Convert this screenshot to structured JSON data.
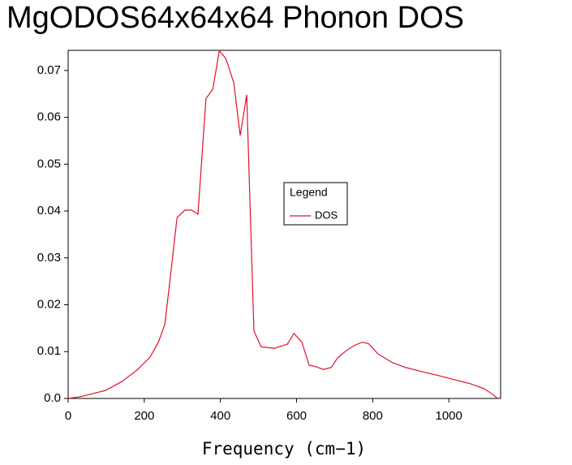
{
  "chart_data": {
    "type": "line",
    "title": "MgODOS64x64x64 Phonon DOS",
    "x_label": "Frequency (cm−1)",
    "legend_title": "Legend",
    "x": [
      0,
      34,
      98,
      141,
      183,
      215,
      237,
      254,
      269,
      286,
      307,
      324,
      341,
      362,
      380,
      397,
      414,
      435,
      452,
      469,
      488,
      507,
      542,
      576,
      593,
      614,
      633,
      650,
      670,
      691,
      708,
      729,
      751,
      772,
      789,
      814,
      853,
      887,
      930,
      972,
      1015,
      1058,
      1092,
      1115,
      1128
    ],
    "series": [
      {
        "name": "DOS",
        "color": "#e0102a",
        "values": [
          0,
          0.0004,
          0.0017,
          0.0036,
          0.0062,
          0.0088,
          0.012,
          0.0158,
          0.0263,
          0.0386,
          0.0402,
          0.0402,
          0.0393,
          0.064,
          0.066,
          0.0742,
          0.0726,
          0.0674,
          0.0561,
          0.0648,
          0.0144,
          0.011,
          0.0107,
          0.0116,
          0.0139,
          0.012,
          0.0071,
          0.0068,
          0.0062,
          0.0066,
          0.0087,
          0.0101,
          0.0113,
          0.012,
          0.0117,
          0.0095,
          0.0076,
          0.0066,
          0.0057,
          0.0049,
          0.004,
          0.0031,
          0.0021,
          0.0009,
          0
        ]
      }
    ],
    "xlim": [
      0,
      1136
    ],
    "xticks": [
      0,
      200,
      400,
      600,
      800,
      1000
    ],
    "ylim": [
      0,
      0.0743
    ],
    "yticks": [
      {
        "value": 0,
        "label": "0.0"
      },
      0.01,
      0.02,
      0.03,
      0.04,
      0.05,
      0.06,
      0.07
    ],
    "legend_position": "center"
  }
}
